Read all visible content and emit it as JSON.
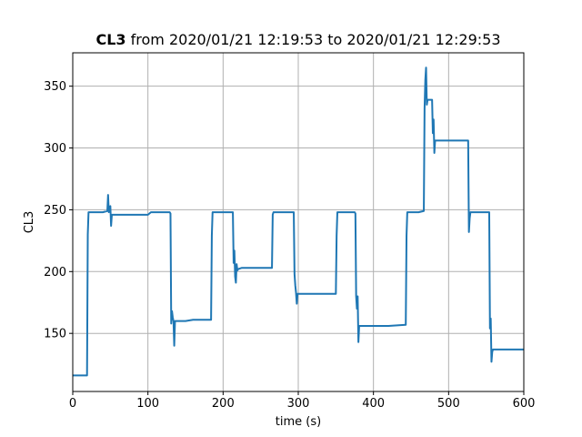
{
  "chart_data": {
    "type": "line",
    "title_bold": "CL3",
    "title_rest": " from 2020/01/21 12:19:53 to 2020/01/21 12:29:53",
    "xlabel": "time (s)",
    "ylabel": "CL3",
    "xlim": [
      0,
      600
    ],
    "ylim": [
      103,
      377
    ],
    "xticks": [
      0,
      100,
      200,
      300,
      400,
      500,
      600
    ],
    "yticks": [
      150,
      200,
      250,
      300,
      350
    ],
    "grid": true,
    "line_color": "#1f77b4",
    "series": [
      {
        "x": [
          0,
          18,
          19,
          20,
          21,
          22,
          40,
          46,
          47,
          48,
          49,
          50,
          51,
          52,
          53,
          55,
          60,
          70,
          80,
          100,
          104,
          105,
          128,
          129,
          130,
          131,
          132,
          133,
          134,
          135,
          136,
          137,
          140,
          150,
          160,
          170,
          184,
          185,
          186,
          187,
          188,
          200,
          212,
          213,
          214,
          215,
          216,
          217,
          218,
          219,
          220,
          225,
          240,
          250,
          265,
          266,
          267,
          268,
          270,
          280,
          294,
          295,
          296,
          297,
          298,
          299,
          300,
          301,
          310,
          330,
          350,
          351,
          352,
          353,
          360,
          375,
          376,
          377,
          378,
          379,
          380,
          381,
          383,
          390,
          400,
          420,
          443,
          444,
          445,
          446,
          447,
          460,
          467,
          468,
          469,
          470,
          471,
          472,
          473,
          474,
          478,
          479,
          480,
          481,
          482,
          483,
          484,
          485,
          490,
          500,
          510,
          526,
          527,
          528,
          529,
          530,
          540,
          553,
          554,
          555,
          556,
          557,
          558,
          559,
          560,
          570,
          580,
          600
        ],
        "y": [
          116,
          116,
          116,
          230,
          248,
          248,
          248,
          249,
          262,
          248,
          250,
          253,
          237,
          246,
          246,
          246,
          246,
          246,
          246,
          246,
          248,
          248,
          248,
          248,
          247,
          158,
          168,
          163,
          160,
          140,
          160,
          160,
          160,
          160,
          161,
          161,
          161,
          229,
          248,
          248,
          248,
          248,
          248,
          248,
          207,
          217,
          196,
          191,
          206,
          201,
          202,
          203,
          203,
          203,
          203,
          246,
          248,
          248,
          248,
          248,
          248,
          198,
          189,
          183,
          174,
          182,
          182,
          182,
          182,
          182,
          182,
          229,
          248,
          248,
          248,
          248,
          247,
          180,
          170,
          180,
          143,
          156,
          156,
          156,
          156,
          156,
          157,
          229,
          248,
          248,
          248,
          248,
          249,
          332,
          355,
          365,
          335,
          339,
          339,
          339,
          339,
          312,
          323,
          296,
          306,
          306,
          306,
          306,
          306,
          306,
          306,
          306,
          232,
          243,
          248,
          248,
          248,
          248,
          248,
          154,
          162,
          127,
          135,
          137,
          137,
          137,
          137,
          137
        ]
      }
    ]
  }
}
